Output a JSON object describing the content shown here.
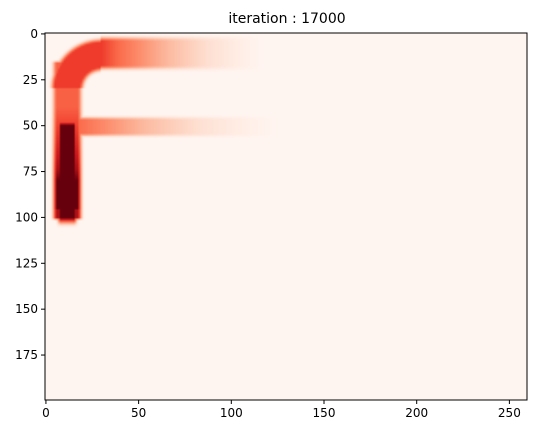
{
  "chart_data": {
    "type": "heatmap",
    "title": "iteration : 17000",
    "xlabel": "",
    "ylabel": "",
    "colormap": "Reds",
    "image_extent": {
      "x": [
        -0.5,
        259.5
      ],
      "y": [
        199.5,
        -0.5
      ]
    },
    "xlim": [
      -0.5,
      259.5
    ],
    "ylim": [
      199.5,
      -0.5
    ],
    "y_inverted": true,
    "grid": false,
    "x_ticks": [
      0,
      50,
      100,
      150,
      200,
      250
    ],
    "x_tick_labels": [
      "0",
      "50",
      "100",
      "150",
      "200",
      "250"
    ],
    "y_ticks": [
      0,
      25,
      50,
      75,
      100,
      125,
      150,
      175
    ],
    "y_tick_labels": [
      "0",
      "25",
      "50",
      "75",
      "100",
      "125",
      "150",
      "175"
    ],
    "colors": {
      "background": "#fff5f0",
      "light": "#fcbba1",
      "mid": "#ef3b2c",
      "dark": "#67000d"
    },
    "intensity_field": {
      "description_units": "data coordinates (column x, row y); intensity 0–1",
      "strokes": [
        {
          "name": "vertical-stem",
          "x": [
            5,
            18
          ],
          "y": [
            18,
            100
          ],
          "intensity": [
            0.75,
            1.0
          ]
        },
        {
          "name": "stem-curve",
          "x": [
            8,
            30
          ],
          "y": [
            5,
            30
          ],
          "intensity": [
            0.8,
            0.85
          ]
        },
        {
          "name": "top-bar",
          "x": [
            18,
            115
          ],
          "y": [
            4,
            17
          ],
          "intensity": [
            0.75,
            0.0
          ]
        },
        {
          "name": "middle-bar",
          "x": [
            15,
            125
          ],
          "y": [
            47,
            54
          ],
          "intensity": [
            0.75,
            0.0
          ]
        }
      ]
    }
  }
}
